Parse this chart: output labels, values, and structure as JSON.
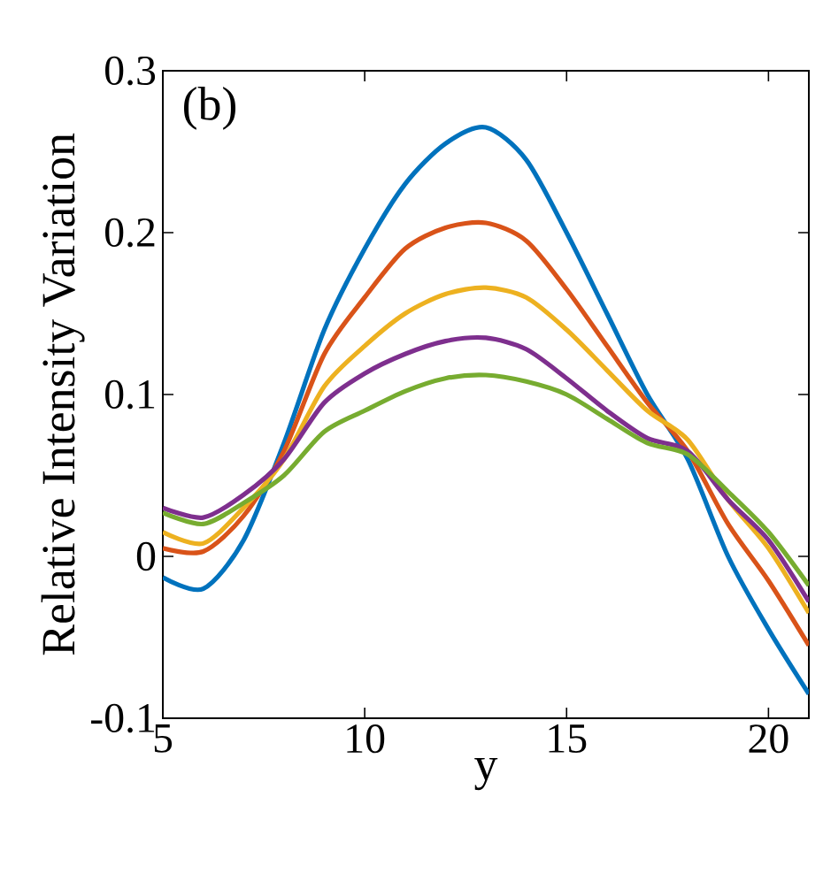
{
  "chart_data": {
    "type": "line",
    "xlabel": "y",
    "ylabel": "Relative Intensity Variation",
    "annotations": [
      "(b)"
    ],
    "x": [
      5,
      6,
      7,
      8,
      9,
      10,
      11,
      12,
      13,
      14,
      15,
      16,
      17,
      18,
      19,
      20,
      21
    ],
    "series": [
      {
        "color": "#0072bd",
        "values": [
          -0.013,
          -0.02,
          0.01,
          0.07,
          0.14,
          0.19,
          0.23,
          0.255,
          0.265,
          0.245,
          0.2,
          0.15,
          0.1,
          0.06,
          0.0,
          -0.045,
          -0.085
        ]
      },
      {
        "color": "#d95319",
        "values": [
          0.005,
          0.003,
          0.025,
          0.065,
          0.125,
          0.16,
          0.19,
          0.203,
          0.206,
          0.195,
          0.165,
          0.13,
          0.095,
          0.065,
          0.02,
          -0.015,
          -0.055
        ]
      },
      {
        "color": "#edb120",
        "values": [
          0.015,
          0.008,
          0.03,
          0.06,
          0.105,
          0.13,
          0.15,
          0.162,
          0.166,
          0.16,
          0.14,
          0.115,
          0.09,
          0.072,
          0.035,
          0.005,
          -0.035
        ]
      },
      {
        "color": "#7e2f8e",
        "values": [
          0.03,
          0.024,
          0.038,
          0.06,
          0.095,
          0.113,
          0.125,
          0.133,
          0.135,
          0.128,
          0.11,
          0.09,
          0.073,
          0.065,
          0.035,
          0.01,
          -0.028
        ]
      },
      {
        "color": "#77ac30",
        "values": [
          0.027,
          0.02,
          0.033,
          0.05,
          0.077,
          0.09,
          0.102,
          0.11,
          0.112,
          0.108,
          0.1,
          0.085,
          0.07,
          0.063,
          0.04,
          0.015,
          -0.018
        ]
      }
    ],
    "xlim": [
      5,
      21
    ],
    "ylim": [
      -0.1,
      0.3
    ],
    "xticks": [
      5,
      10,
      15,
      20
    ],
    "yticks": [
      -0.1,
      0,
      0.1,
      0.2,
      0.3
    ],
    "grid": false,
    "marker": "none",
    "line_style": "solid"
  }
}
